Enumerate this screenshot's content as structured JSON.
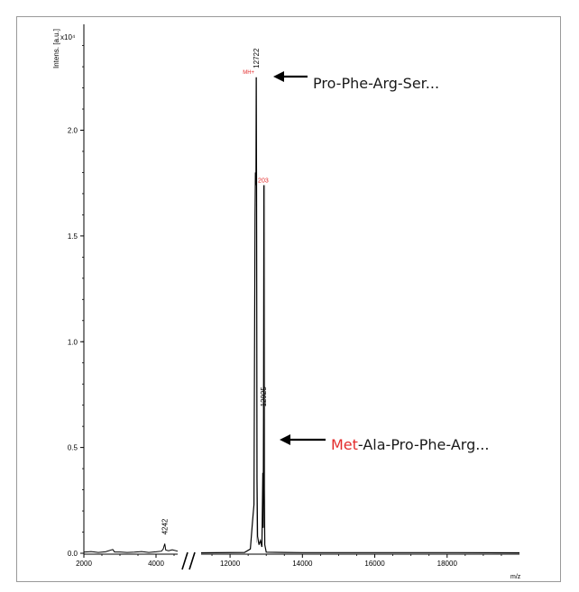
{
  "chart_data": {
    "type": "line",
    "ylabel": "Intens. [a.u.]",
    "yscale_label": "x10⁴",
    "xlabel": "m/z",
    "yticks": [
      "0.0",
      "0.5",
      "1.0",
      "1.5",
      "2.0"
    ],
    "xticks_left": [
      "2000",
      "4000"
    ],
    "xticks_right": [
      "12000",
      "14000",
      "16000",
      "18000"
    ],
    "xlim_left": [
      2000,
      4600
    ],
    "xlim_right": [
      11200,
      20000
    ],
    "ylim": [
      0,
      2.5
    ],
    "x_axis_break": true,
    "grid": false,
    "peaks": [
      {
        "label": "4242",
        "x": 4242,
        "y": 0.045
      },
      {
        "label": "12722",
        "x": 12722,
        "y": 2.25
      },
      {
        "label": "12925",
        "x": 12925,
        "y": 0.65
      }
    ],
    "series": [
      {
        "color": "#000000",
        "points": [
          [
            2000,
            0.005
          ],
          [
            2200,
            0.008
          ],
          [
            2400,
            0.004
          ],
          [
            2600,
            0.007
          ],
          [
            2800,
            0.018
          ],
          [
            2850,
            0.006
          ],
          [
            3000,
            0.006
          ],
          [
            3200,
            0.004
          ],
          [
            3400,
            0.005
          ],
          [
            3600,
            0.008
          ],
          [
            3800,
            0.004
          ],
          [
            4000,
            0.007
          ],
          [
            4150,
            0.01
          ],
          [
            4200,
            0.02
          ],
          [
            4242,
            0.045
          ],
          [
            4270,
            0.015
          ],
          [
            4350,
            0.012
          ],
          [
            4450,
            0.016
          ],
          [
            4600,
            0.01
          ],
          [
            11200,
            0.002
          ],
          [
            12400,
            0.004
          ],
          [
            12560,
            0.02
          ],
          [
            12620,
            0.15
          ],
          [
            12660,
            0.23
          ],
          [
            12690,
            1.6
          ],
          [
            12700,
            1.8
          ],
          [
            12715,
            1.74
          ],
          [
            12722,
            2.25
          ],
          [
            12732,
            1.72
          ],
          [
            12745,
            0.35
          ],
          [
            12760,
            0.08
          ],
          [
            12800,
            0.04
          ],
          [
            12840,
            0.06
          ],
          [
            12880,
            0.03
          ],
          [
            12905,
            0.38
          ],
          [
            12915,
            0.12
          ],
          [
            12925,
            0.65
          ],
          [
            12935,
            1.74
          ],
          [
            12945,
            0.3
          ],
          [
            12960,
            0.04
          ],
          [
            13000,
            0.005
          ],
          [
            13500,
            0.004
          ],
          [
            14000,
            0.003
          ],
          [
            16000,
            0.003
          ],
          [
            18000,
            0.003
          ],
          [
            20000,
            0.002
          ]
        ]
      }
    ]
  },
  "markers": {
    "mh_label": "MH+",
    "mid_label": "203"
  },
  "annotations": {
    "top": {
      "text": "Pro-Phe-Arg-Ser..."
    },
    "bottom": {
      "red_part": "Met",
      "rest": "-Ala-Pro-Phe-Arg..."
    }
  }
}
